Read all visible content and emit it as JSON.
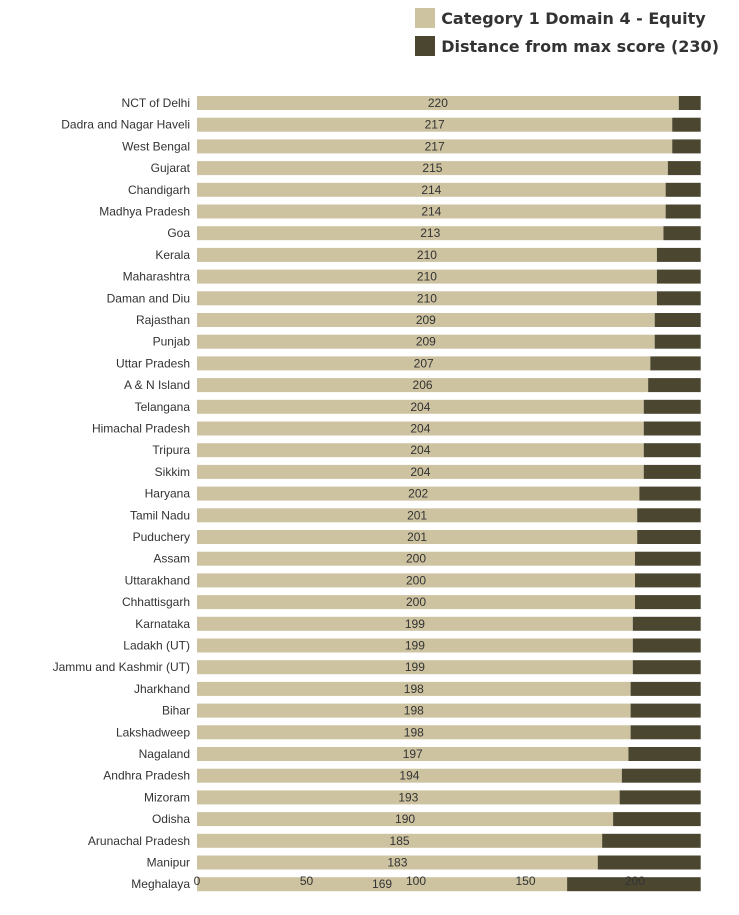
{
  "legend": {
    "series1_label": "Category 1 Domain 4 - Equity",
    "series2_label": "Distance from max score (230)"
  },
  "colors": {
    "series1": "#cdc3a1",
    "series2": "#4b4630"
  },
  "chart_data": {
    "type": "bar",
    "orientation": "horizontal",
    "stacked": true,
    "title": "",
    "xlabel": "",
    "ylabel": "",
    "xlim": [
      0,
      230
    ],
    "xticks": [
      0,
      50,
      100,
      150,
      200
    ],
    "legend_position": "top-right",
    "grid": false,
    "categories": [
      "NCT of Delhi",
      "Dadra and Nagar Haveli",
      "West Bengal",
      "Gujarat",
      "Chandigarh",
      "Madhya Pradesh",
      "Goa",
      "Kerala",
      "Maharashtra",
      "Daman and Diu",
      "Rajasthan",
      "Punjab",
      "Uttar Pradesh",
      "A & N Island",
      "Telangana",
      "Himachal Pradesh",
      "Tripura",
      "Sikkim",
      "Haryana",
      "Tamil Nadu",
      "Puduchery",
      "Assam",
      "Uttarakhand",
      "Chhattisgarh",
      "Karnataka",
      "Ladakh (UT)",
      "Jammu and Kashmir (UT)",
      "Jharkhand",
      "Bihar",
      "Lakshadweep",
      "Nagaland",
      "Andhra Pradesh",
      "Mizoram",
      "Odisha",
      "Arunachal Pradesh",
      "Manipur",
      "Meghalaya"
    ],
    "series": [
      {
        "name": "Category 1 Domain 4 - Equity",
        "values": [
          220,
          217,
          217,
          215,
          214,
          214,
          213,
          210,
          210,
          210,
          209,
          209,
          207,
          206,
          204,
          204,
          204,
          204,
          202,
          201,
          201,
          200,
          200,
          200,
          199,
          199,
          199,
          198,
          198,
          198,
          197,
          194,
          193,
          190,
          185,
          183,
          169
        ]
      },
      {
        "name": "Distance from max score (230)",
        "values": [
          10,
          13,
          13,
          15,
          16,
          16,
          17,
          20,
          20,
          20,
          21,
          21,
          23,
          24,
          26,
          26,
          26,
          26,
          28,
          29,
          29,
          30,
          30,
          30,
          31,
          31,
          31,
          32,
          32,
          32,
          33,
          36,
          37,
          40,
          45,
          47,
          61
        ]
      }
    ]
  }
}
